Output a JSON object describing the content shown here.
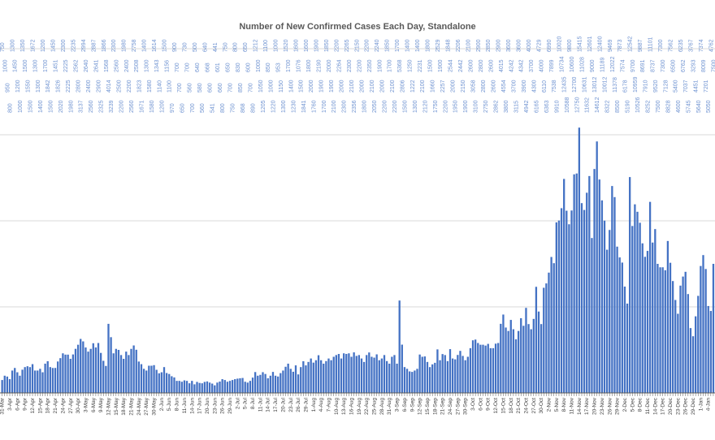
{
  "chart_data": {
    "type": "bar",
    "title": "Number of New Confirmed Cases Each Day, Standalone",
    "xlabel": "",
    "ylabel": "",
    "ylim": [
      0,
      20000
    ],
    "y_gridlines": [
      0,
      5000,
      10000,
      15000,
      20000
    ],
    "grid": true,
    "legend": "none",
    "bar_color": "#4472c4",
    "label_color": "#6f93d1",
    "first_date": "31-Mar",
    "tick_every_n_days": 3,
    "tick_labels": [
      "31-Mar",
      "3-Apr",
      "6-Apr",
      "9-Apr",
      "12-Apr",
      "15-Apr",
      "18-Apr",
      "21-Apr",
      "24-Apr",
      "27-Apr",
      "30-Apr",
      "3-May",
      "6-May",
      "9-May",
      "12-May",
      "15-May",
      "18-May",
      "21-May",
      "24-May",
      "27-May",
      "30-May",
      "2-Jun",
      "5-Jun",
      "8-Jun",
      "11-Jun",
      "14-Jun",
      "17-Jun",
      "20-Jun",
      "23-Jun",
      "26-Jun",
      "29-Jun",
      "2-Jul",
      "5-Jul",
      "8-Jul",
      "11-Jul",
      "14-Jul",
      "17-Jul",
      "20-Jul",
      "23-Jul",
      "26-Jul",
      "29-Jul",
      "1-Aug",
      "4-Aug",
      "7-Aug",
      "10-Aug",
      "13-Aug",
      "16-Aug",
      "19-Aug",
      "22-Aug",
      "25-Aug",
      "28-Aug",
      "31-Aug",
      "3-Sep",
      "6-Sep",
      "9-Sep",
      "12-Sep",
      "15-Sep",
      "18-Sep",
      "21-Sep",
      "24-Sep",
      "27-Sep",
      "30-Sep",
      "3-Oct",
      "6-Oct",
      "9-Oct",
      "12-Oct",
      "15-Oct",
      "18-Oct",
      "21-Oct",
      "24-Oct",
      "27-Oct",
      "30-Oct",
      "2-Nov",
      "5-Nov",
      "8-Nov",
      "11-Nov",
      "14-Nov",
      "17-Nov",
      "20-Nov",
      "23-Nov",
      "26-Nov",
      "29-Nov",
      "2-Dec",
      "5-Dec",
      "8-Dec",
      "11-Dec",
      "14-Dec",
      "17-Dec",
      "20-Dec",
      "23-Dec",
      "26-Dec",
      "29-Dec",
      "1-Jan",
      "4-Jan"
    ],
    "values": [
      750,
      1000,
      950,
      800,
      1300,
      1450,
      1200,
      1000,
      1350,
      1500,
      1550,
      1500,
      1672,
      1300,
      1300,
      1400,
      1200,
      1700,
      1842,
      1500,
      1450,
      1451,
      1826,
      2020,
      2300,
      2225,
      2225,
      1980,
      2235,
      2562,
      2800,
      3137,
      2994,
      2640,
      2400,
      2560,
      2887,
      2641,
      2900,
      2325,
      1866,
      1568,
      4014,
      3239,
      2300,
      2560,
      2500,
      2200,
      1980,
      2400,
      2200,
      2560,
      2758,
      2508,
      1823,
      1671,
      1400,
      1300,
      1580,
      1580,
      1614,
      1343,
      1140,
      1200,
      1500,
      1156,
      1100,
      970,
      900,
      700,
      700,
      650,
      730,
      700,
      560,
      700,
      500,
      640,
      580,
      560,
      640,
      668,
      600,
      541,
      441,
      601,
      660,
      800,
      750,
      650,
      700,
      750,
      800,
      830,
      850,
      868,
      650,
      600,
      700,
      890,
      1212,
      1000,
      1050,
      1205,
      1100,
      850,
      1000,
      1220,
      1000,
      953,
      1150,
      1300,
      1520,
      1700,
      1400,
      1230,
      1600,
      1076,
      1500,
      1841,
      1600,
      1800,
      2000,
      1760,
      1900,
      2190,
      1900,
      1700,
      1850,
      2000,
      1900,
      2100,
      2200,
      2264,
      2000,
      2300,
      2265,
      2300,
      2100,
      2356,
      2150,
      2200,
      2000,
      1800,
      2200,
      2350,
      2100,
      2050,
      2240,
      1900,
      2000,
      2200,
      1850,
      1700,
      2100,
      2200,
      1700,
      5368,
      2806,
      1500,
      1400,
      1250,
      1222,
      1300,
      1400,
      2231,
      2100,
      2120,
      1800,
      1500,
      1660,
      1750,
      2529,
      1900,
      2257,
      2200,
      1848,
      2544,
      2000,
      1950,
      2206,
      2442,
      2150,
      1900,
      2100,
      2600,
      3058,
      3100,
      2900,
      2800,
      2800,
      2750,
      2850,
      2600,
      2600,
      2862,
      2900,
      4015,
      4554,
      3800,
      3600,
      4242,
      3700,
      3115,
      3600,
      4342,
      3900,
      4942,
      4000,
      3700,
      4300,
      6165,
      4729,
      4000,
      6110,
      6363,
      6990,
      7899,
      7538,
      9910,
      10020,
      10734,
      12435,
      10588,
      9800,
      10600,
      12700,
      12750,
      15415,
      11028,
      10631,
      11632,
      12601,
      9000,
      13012,
      14612,
      12400,
      11189,
      10012,
      8322,
      9469,
      12022,
      11378,
      8500,
      7873,
      7574,
      6178,
      5190,
      12542,
      9700,
      10959,
      10526,
      9887,
      8691,
      7910,
      8252,
      11101,
      8737,
      9520,
      7500,
      7300,
      7300,
      7128,
      8828,
      7562,
      6500,
      5400,
      4600,
      6235,
      6762,
      7037,
      5745,
      3767,
      3293,
      4451,
      5640,
      7374,
      8009,
      7201,
      5050,
      4762,
      7500
    ]
  }
}
